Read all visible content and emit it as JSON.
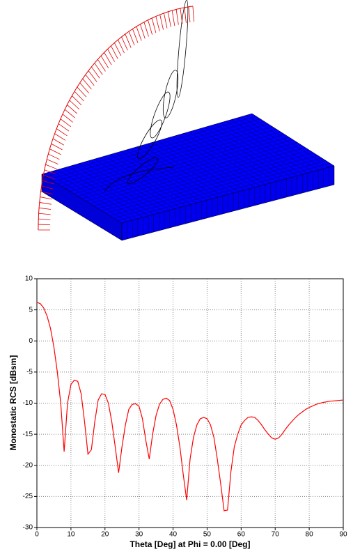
{
  "chart_data": {
    "type": "line",
    "x_label": "Theta [Deg] at Phi = 0.00 [Deg]",
    "y_label": "Monostatic RCS [dBsm]",
    "xlim": [
      0,
      90
    ],
    "xticks": [
      0,
      10,
      20,
      30,
      40,
      50,
      60,
      70,
      80,
      90
    ],
    "ylim": [
      -30,
      10
    ],
    "yticks": [
      10,
      5,
      0,
      -5,
      -10,
      -15,
      -20,
      -25,
      -30
    ],
    "grid": true,
    "series": [
      {
        "color": "#ff0000",
        "x": [
          0,
          1,
          2,
          3,
          4,
          5,
          6,
          7,
          8,
          9,
          10,
          11,
          12,
          13,
          14,
          15,
          16,
          17,
          18,
          19,
          20,
          21,
          22,
          23,
          24,
          25,
          26,
          27,
          28,
          29,
          30,
          31,
          32,
          33,
          34,
          35,
          36,
          37,
          38,
          39,
          40,
          41,
          42,
          43,
          44,
          45,
          46,
          47,
          48,
          49,
          50,
          51,
          52,
          53,
          54,
          55,
          56,
          57,
          58,
          59,
          60,
          61,
          62,
          63,
          64,
          65,
          66,
          67,
          68,
          69,
          70,
          71,
          72,
          73,
          74,
          75,
          76,
          77,
          78,
          79,
          80,
          82,
          84,
          86,
          88,
          90
        ],
        "values": [
          6.2,
          6.0,
          5.3,
          4.0,
          2.0,
          -1,
          -5,
          -10,
          -17.8,
          -10,
          -7.0,
          -6.3,
          -6.5,
          -8.5,
          -13,
          -18.2,
          -17.5,
          -13,
          -9.5,
          -8.5,
          -8.6,
          -10,
          -13,
          -17,
          -21.2,
          -17,
          -13.5,
          -11,
          -10.2,
          -10.1,
          -10.5,
          -12.5,
          -16,
          -19,
          -15,
          -12,
          -10.2,
          -9.4,
          -9.2,
          -9.6,
          -11,
          -13.5,
          -17,
          -21.5,
          -25.6,
          -19,
          -15.5,
          -13.5,
          -12.5,
          -12.3,
          -12.5,
          -13.5,
          -15.5,
          -19,
          -23,
          -27.3,
          -27.2,
          -21,
          -17,
          -15,
          -13.5,
          -12.8,
          -12.3,
          -12.2,
          -12.3,
          -12.8,
          -13.5,
          -14.3,
          -15,
          -15.6,
          -15.8,
          -15.6,
          -15,
          -14.2,
          -13.5,
          -12.9,
          -12.3,
          -11.8,
          -11.4,
          -11,
          -10.7,
          -10.2,
          -9.9,
          -9.7,
          -9.6,
          -9.5
        ]
      }
    ]
  }
}
